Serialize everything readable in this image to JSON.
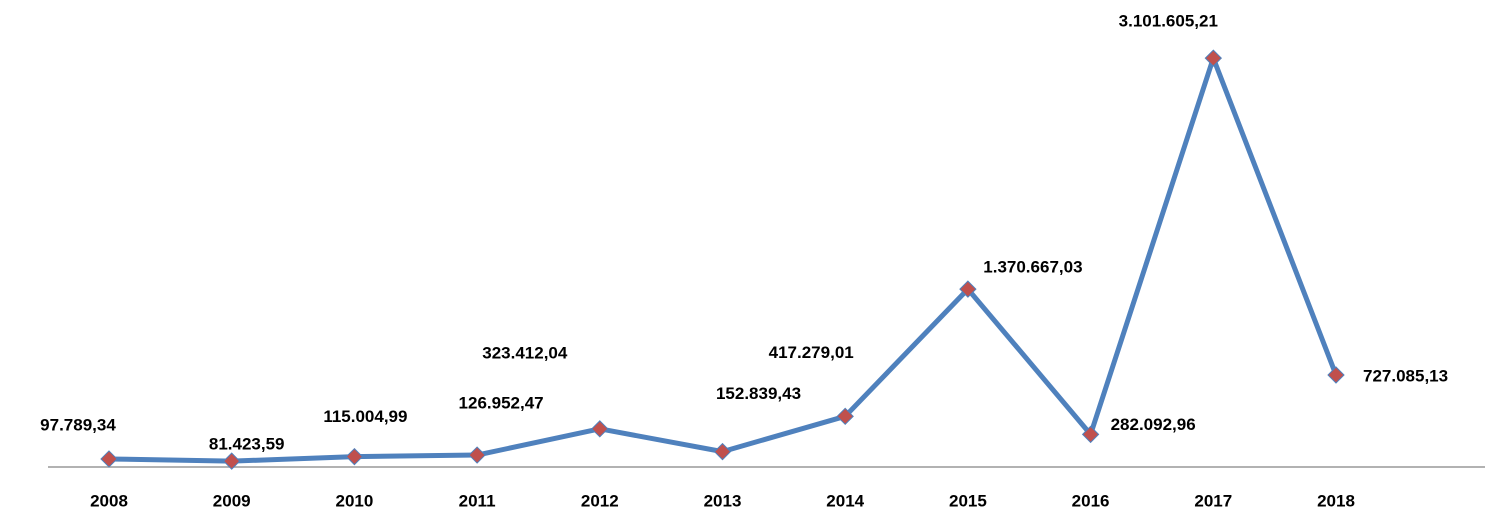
{
  "chart_data": {
    "type": "line",
    "categories": [
      "2008",
      "2009",
      "2010",
      "2011",
      "2012",
      "2013",
      "2014",
      "2015",
      "2016",
      "2017",
      "2018"
    ],
    "series": [
      {
        "name": null,
        "color": "#4f81bd",
        "marker_color": "#c0504d",
        "values": [
          97789.34,
          81423.59,
          115004.99,
          126952.47,
          323412.04,
          152839.43,
          417279.01,
          1370667.03,
          282092.96,
          3101605.21,
          727085.13
        ],
        "value_labels": [
          "97.789,34",
          "81.423,59",
          "115.004,99",
          "126.952,47",
          "323.412,04",
          "152.839,43",
          "417.279,01",
          "1.370.667,03",
          "282.092,96",
          "3.101.605,21",
          "727.085,13"
        ]
      }
    ],
    "ylim": [
      0,
      3500000
    ],
    "grid": false
  }
}
